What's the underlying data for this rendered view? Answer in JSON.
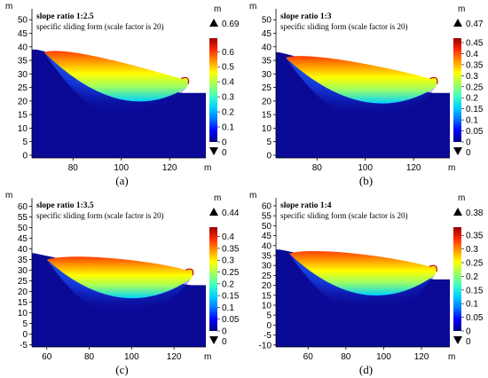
{
  "colors": {
    "ground": "#0a0a96",
    "colormap": [
      "#00007f",
      "#0000ff",
      "#0078ff",
      "#00d2ff",
      "#40ffbf",
      "#a0ff60",
      "#ffff00",
      "#ff9600",
      "#ff2800",
      "#9a0000"
    ]
  },
  "icons": {
    "max_marker": "up-triangle-icon",
    "min_marker": "down-triangle-icon"
  },
  "chart_data": [
    {
      "id": "a",
      "type": "heatmap",
      "caption": "(a)",
      "title": "slope ratio 1:2.5",
      "subtitle": "specific sliding form (scale factor is 20)",
      "xlabel": "m",
      "ylabel": "m",
      "xlim": [
        63,
        135
      ],
      "ylim": [
        -1,
        54
      ],
      "x_ticks": [
        80,
        100,
        120
      ],
      "y_ticks": [
        0,
        5,
        10,
        15,
        20,
        25,
        30,
        35,
        40,
        45,
        50
      ],
      "slope": {
        "crest_x": 65,
        "crest_y": 39,
        "toe_x": 125,
        "toe_y": 23
      },
      "slip": {
        "x_start": 68,
        "y_start": 38,
        "x_end": 127,
        "y_end": 25,
        "bottom_x": 100,
        "bottom_y": 18
      },
      "colorbar": {
        "unit": "m",
        "max_label": "0.69",
        "min_label": "0",
        "ticks": [
          "0.6",
          "0.5",
          "0.4",
          "0.3",
          "0.2",
          "0.1",
          "0"
        ],
        "tick_values": [
          0.6,
          0.5,
          0.4,
          0.3,
          0.2,
          0.1,
          0
        ],
        "range": [
          0,
          0.69
        ]
      }
    },
    {
      "id": "b",
      "type": "heatmap",
      "caption": "(b)",
      "title": "slope ratio 1:3",
      "subtitle": "specific sliding form (scale factor is 20)",
      "xlabel": "m",
      "ylabel": "m",
      "xlim": [
        63,
        135
      ],
      "ylim": [
        -1,
        54
      ],
      "x_ticks": [
        80,
        100,
        120
      ],
      "y_ticks": [
        0,
        5,
        10,
        15,
        20,
        25,
        30,
        35,
        40,
        45,
        50
      ],
      "slope": {
        "crest_x": 64,
        "crest_y": 38,
        "toe_x": 128,
        "toe_y": 23
      },
      "slip": {
        "x_start": 67,
        "y_start": 36,
        "x_end": 129,
        "y_end": 25,
        "bottom_x": 100,
        "bottom_y": 17
      },
      "colorbar": {
        "unit": "m",
        "max_label": "0.47",
        "min_label": "0",
        "ticks": [
          "0.45",
          "0.4",
          "0.35",
          "0.3",
          "0.25",
          "0.2",
          "0.15",
          "0.1",
          "0.05",
          "0"
        ],
        "tick_values": [
          0.45,
          0.4,
          0.35,
          0.3,
          0.25,
          0.2,
          0.15,
          0.1,
          0.05,
          0
        ],
        "range": [
          0,
          0.47
        ]
      }
    },
    {
      "id": "c",
      "type": "heatmap",
      "caption": "(c)",
      "title": "slope ratio 1:3.5",
      "subtitle": "specific sliding form (scale factor is 20)",
      "xlabel": "m",
      "ylabel": "m",
      "xlim": [
        53,
        135
      ],
      "ylim": [
        -6,
        64
      ],
      "x_ticks": [
        60,
        80,
        100,
        120
      ],
      "y_ticks": [
        -5,
        0,
        5,
        10,
        15,
        20,
        25,
        30,
        35,
        40,
        45,
        50,
        55,
        60
      ],
      "slope": {
        "crest_x": 54,
        "crest_y": 38,
        "toe_x": 128,
        "toe_y": 23
      },
      "slip": {
        "x_start": 60,
        "y_start": 35,
        "x_end": 128,
        "y_end": 26,
        "bottom_x": 95,
        "bottom_y": 14
      },
      "colorbar": {
        "unit": "m",
        "max_label": "0.44",
        "min_label": "0",
        "ticks": [
          "0.4",
          "0.35",
          "0.3",
          "0.25",
          "0.2",
          "0.15",
          "0.1",
          "0.05",
          "0"
        ],
        "tick_values": [
          0.4,
          0.35,
          0.3,
          0.25,
          0.2,
          0.15,
          0.1,
          0.05,
          0
        ],
        "range": [
          0,
          0.44
        ]
      }
    },
    {
      "id": "d",
      "type": "heatmap",
      "caption": "(d)",
      "title": "slope ratio 1:4",
      "subtitle": "specific sliding form (scale factor is 20)",
      "xlabel": "m",
      "ylabel": "m",
      "xlim": [
        43,
        135
      ],
      "ylim": [
        -11,
        64
      ],
      "x_ticks": [
        60,
        80,
        100,
        120
      ],
      "y_ticks": [
        -10,
        -5,
        0,
        5,
        10,
        15,
        20,
        25,
        30,
        35,
        40,
        45,
        50,
        55,
        60
      ],
      "slope": {
        "crest_x": 45,
        "crest_y": 38,
        "toe_x": 127,
        "toe_y": 23
      },
      "slip": {
        "x_start": 50,
        "y_start": 36,
        "x_end": 127,
        "y_end": 25,
        "bottom_x": 90,
        "bottom_y": 11
      },
      "colorbar": {
        "unit": "m",
        "max_label": "0.38",
        "min_label": "0",
        "ticks": [
          "0.35",
          "0.3",
          "0.25",
          "0.2",
          "0.15",
          "0.1",
          "0.05",
          "0"
        ],
        "tick_values": [
          0.35,
          0.3,
          0.25,
          0.2,
          0.15,
          0.1,
          0.05,
          0
        ],
        "range": [
          0,
          0.38
        ]
      }
    }
  ]
}
